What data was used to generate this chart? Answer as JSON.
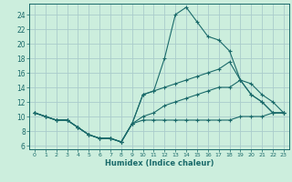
{
  "title": "",
  "xlabel": "Humidex (Indice chaleur)",
  "bg_color": "#cceedd",
  "grid_color": "#aacccc",
  "line_color": "#1a6a6a",
  "xlim": [
    -0.5,
    23.5
  ],
  "ylim": [
    5.5,
    25.5
  ],
  "xticks": [
    0,
    1,
    2,
    3,
    4,
    5,
    6,
    7,
    8,
    9,
    10,
    11,
    12,
    13,
    14,
    15,
    16,
    17,
    18,
    19,
    20,
    21,
    22,
    23
  ],
  "yticks": [
    6,
    8,
    10,
    12,
    14,
    16,
    18,
    20,
    22,
    24
  ],
  "lines": [
    {
      "x": [
        0,
        1,
        2,
        3,
        4,
        5,
        6,
        7,
        8,
        9,
        10,
        11,
        12,
        13,
        14,
        15,
        16,
        17,
        18,
        19,
        20,
        21,
        22,
        23
      ],
      "y": [
        10.5,
        10.0,
        9.5,
        9.5,
        8.5,
        7.5,
        7.0,
        7.0,
        6.5,
        9.0,
        13.0,
        13.5,
        18.0,
        24.0,
        25.0,
        23.0,
        21.0,
        20.5,
        19.0,
        15.0,
        13.0,
        12.0,
        10.5,
        10.5
      ]
    },
    {
      "x": [
        0,
        1,
        2,
        3,
        4,
        5,
        6,
        7,
        8,
        9,
        10,
        11,
        12,
        13,
        14,
        15,
        16,
        17,
        18,
        19,
        20,
        21,
        22,
        23
      ],
      "y": [
        10.5,
        10.0,
        9.5,
        9.5,
        8.5,
        7.5,
        7.0,
        7.0,
        6.5,
        9.0,
        13.0,
        13.5,
        14.0,
        14.5,
        15.0,
        15.5,
        16.0,
        16.5,
        17.5,
        15.0,
        13.0,
        12.0,
        10.5,
        10.5
      ]
    },
    {
      "x": [
        0,
        1,
        2,
        3,
        4,
        5,
        6,
        7,
        8,
        9,
        10,
        11,
        12,
        13,
        14,
        15,
        16,
        17,
        18,
        19,
        20,
        21,
        22,
        23
      ],
      "y": [
        10.5,
        10.0,
        9.5,
        9.5,
        8.5,
        7.5,
        7.0,
        7.0,
        6.5,
        9.0,
        10.0,
        10.5,
        11.5,
        12.0,
        12.5,
        13.0,
        13.5,
        14.0,
        14.0,
        15.0,
        14.5,
        13.0,
        12.0,
        10.5
      ]
    },
    {
      "x": [
        0,
        1,
        2,
        3,
        4,
        5,
        6,
        7,
        8,
        9,
        10,
        11,
        12,
        13,
        14,
        15,
        16,
        17,
        18,
        19,
        20,
        21,
        22,
        23
      ],
      "y": [
        10.5,
        10.0,
        9.5,
        9.5,
        8.5,
        7.5,
        7.0,
        7.0,
        6.5,
        9.0,
        9.5,
        9.5,
        9.5,
        9.5,
        9.5,
        9.5,
        9.5,
        9.5,
        9.5,
        10.0,
        10.0,
        10.0,
        10.5,
        10.5
      ]
    }
  ]
}
